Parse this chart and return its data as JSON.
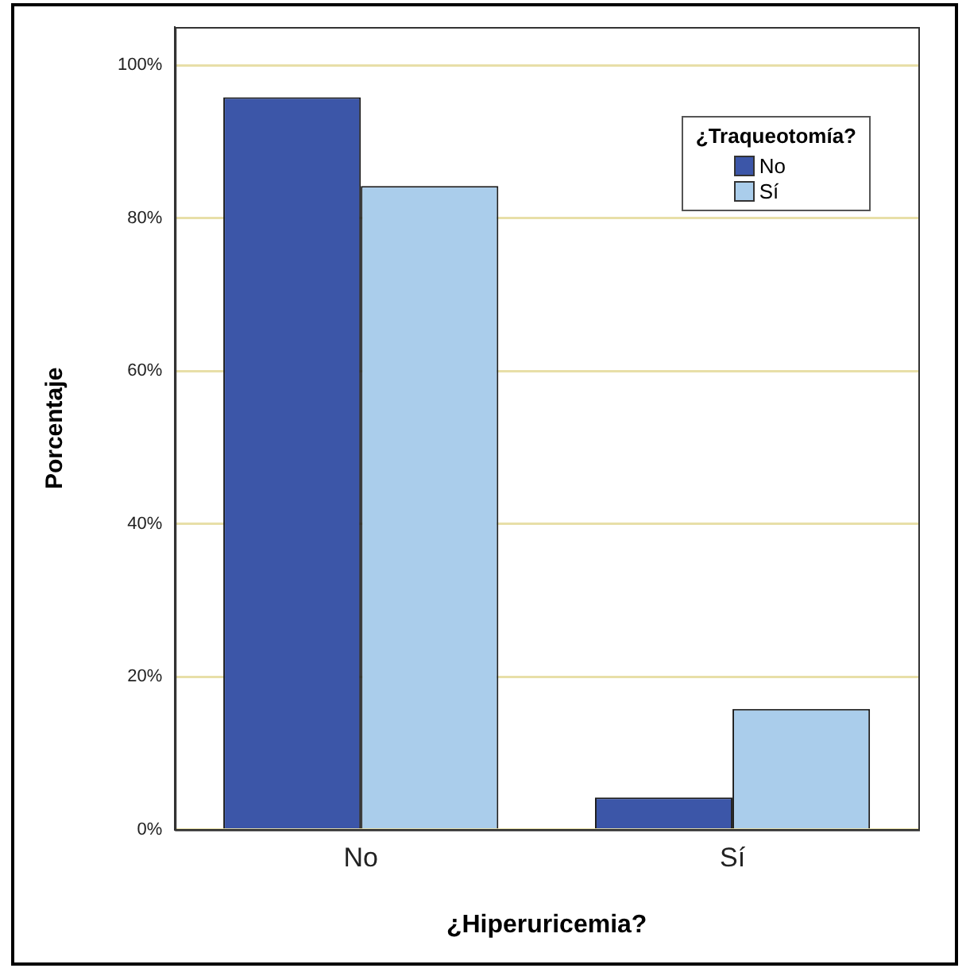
{
  "chart_data": {
    "type": "bar",
    "xlabel": "¿Hiperuricemia?",
    "ylabel": "Porcentaje",
    "legend_title": "¿Traqueotomía?",
    "categories": [
      "No",
      "Sí"
    ],
    "series": [
      {
        "name": "No",
        "color": "#3c56a8",
        "values": [
          95.8,
          4.2
        ]
      },
      {
        "name": "Sí",
        "color": "#aacdeb",
        "values": [
          84.2,
          15.8
        ]
      }
    ],
    "ylim": [
      0,
      105
    ],
    "yticks": [
      {
        "value": 0,
        "label": "0%"
      },
      {
        "value": 20,
        "label": "20%"
      },
      {
        "value": 40,
        "label": "40%"
      },
      {
        "value": 60,
        "label": "60%"
      },
      {
        "value": 80,
        "label": "80%"
      },
      {
        "value": 100,
        "label": "100%"
      }
    ],
    "grid": "y",
    "legend": "top right"
  }
}
